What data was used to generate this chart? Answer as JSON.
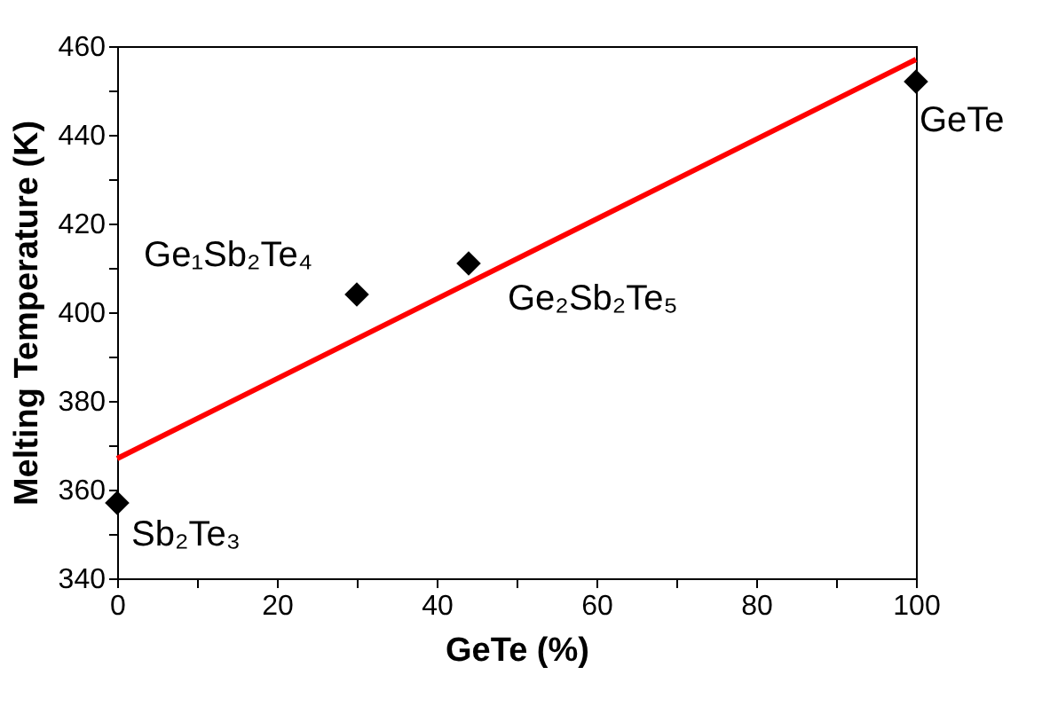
{
  "chart_data": {
    "type": "scatter",
    "xlabel": "GeTe (%)",
    "ylabel": "Melting Temperature (K)",
    "xlim": [
      0,
      100
    ],
    "ylim": [
      340,
      460
    ],
    "xticks": [
      0,
      {
        "value": 10,
        "label": null
      },
      20,
      {
        "value": 30,
        "label": null
      },
      40,
      {
        "value": 50,
        "label": null
      },
      60,
      {
        "value": 70,
        "label": null
      },
      80,
      {
        "value": 90,
        "label": null
      },
      100
    ],
    "yticks": [
      340,
      {
        "value": 350,
        "label": null
      },
      360,
      {
        "value": 370,
        "label": null
      },
      380,
      {
        "value": 390,
        "label": null
      },
      400,
      {
        "value": 410,
        "label": null
      },
      420,
      {
        "value": 430,
        "label": null
      },
      440,
      {
        "value": 450,
        "label": null
      },
      460
    ],
    "grid": false,
    "series": [
      {
        "color": "#000000",
        "marker": "diamond",
        "x": [
          0,
          30,
          44,
          100
        ],
        "values": [
          357,
          404,
          411,
          452
        ]
      },
      {
        "type": "line",
        "color": "#ff0000",
        "line_style": "solid",
        "marker": "none",
        "x": [
          0,
          100
        ],
        "values": [
          367,
          457
        ]
      }
    ],
    "annotations": [
      {
        "text": "Sb₂Te₃",
        "x": 0,
        "y": 357
      },
      {
        "text": "Ge₁Sb₂Te₄",
        "x": 30,
        "y": 404
      },
      {
        "text": "Ge₂Sb₂Te₅",
        "x": 44,
        "y": 411
      },
      {
        "text": "GeTe",
        "x": 100,
        "y": 452
      }
    ]
  }
}
